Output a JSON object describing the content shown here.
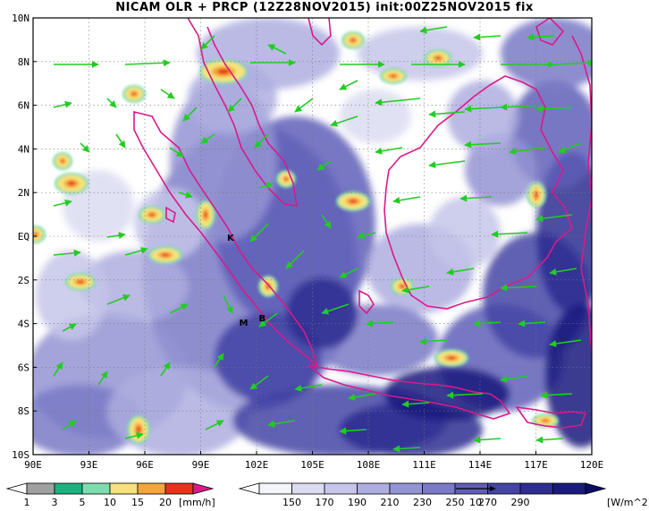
{
  "title": "NICAM OLR + PRCP (12Z28NOV2015) init:00Z25NOV2015 fix",
  "map": {
    "lat_ticks": [
      "10N",
      "8N",
      "6N",
      "4N",
      "2N",
      "EQ",
      "2S",
      "4S",
      "6S",
      "8S",
      "10S"
    ],
    "lon_ticks": [
      "90E",
      "93E",
      "96E",
      "99E",
      "102E",
      "105E",
      "108E",
      "111E",
      "114E",
      "117E",
      "120E"
    ],
    "lat_range": [
      -10,
      10
    ],
    "lon_range": [
      90,
      120
    ],
    "grid": "dotted",
    "markers": [
      {
        "label": "K",
        "lon": 100.6,
        "lat": -0.2
      },
      {
        "label": "M",
        "lon": 101.3,
        "lat": -4.1
      },
      {
        "label": "B",
        "lon": 102.3,
        "lat": -3.9
      }
    ],
    "arrow_color": "#22cc22",
    "coast_color": "#d81b8a"
  },
  "precip_colorbar": {
    "labels": [
      "1",
      "3",
      "5",
      "10",
      "15",
      "20"
    ],
    "unit": "[mm/h]",
    "colors": [
      "#a0a0a0",
      "#1ab27f",
      "#7fdcae",
      "#f5e27a",
      "#f4a63a",
      "#e8331c",
      "#d81b8a"
    ]
  },
  "olr_colorbar": {
    "labels": [
      "150",
      "170",
      "190",
      "210",
      "230",
      "250",
      "270",
      "290"
    ],
    "unit": "[W/m^2]",
    "vector_ref": "10",
    "colors": [
      "#f4f4fb",
      "#dcdcf2",
      "#c6c6ea",
      "#aeaee0",
      "#9494d4",
      "#7a7ac7",
      "#5f5fb8",
      "#4444a6",
      "#2d2d92",
      "#1a1a7e",
      "#0c0c66"
    ]
  }
}
